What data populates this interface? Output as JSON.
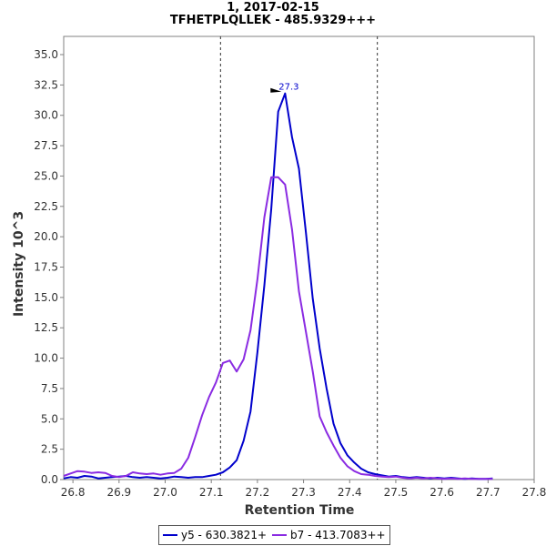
{
  "chart_data": {
    "type": "line",
    "title": "1, 2017-02-15",
    "subtitle": "TFHETPLQLLEK - 485.9329+++",
    "xlabel": "Retention Time",
    "ylabel": "Intensity 10^3",
    "xlim": [
      26.78,
      27.8
    ],
    "ylim": [
      0,
      36.5
    ],
    "xticks": [
      "26.8",
      "26.9",
      "27.0",
      "27.1",
      "27.2",
      "27.3",
      "27.4",
      "27.5",
      "27.6",
      "27.7",
      "27.8"
    ],
    "yticks": [
      "0.0",
      "2.5",
      "5.0",
      "7.5",
      "10.0",
      "12.5",
      "15.0",
      "17.5",
      "20.0",
      "22.5",
      "25.0",
      "27.5",
      "30.0",
      "32.5",
      "35.0"
    ],
    "boundaries": [
      27.12,
      27.46
    ],
    "peak_annotation": {
      "label": "27.3",
      "x": 27.26,
      "y": 31.8
    },
    "legend_position": "bottom-center",
    "grid": false,
    "series": [
      {
        "name": "y5 - 630.3821+",
        "color": "#0000cc",
        "x": [
          26.78,
          26.795,
          26.81,
          26.825,
          26.84,
          26.855,
          26.87,
          26.885,
          26.9,
          26.915,
          26.93,
          26.945,
          26.96,
          26.975,
          26.99,
          27.005,
          27.02,
          27.035,
          27.05,
          27.065,
          27.08,
          27.095,
          27.11,
          27.125,
          27.14,
          27.155,
          27.17,
          27.185,
          27.2,
          27.215,
          27.23,
          27.245,
          27.26,
          27.275,
          27.29,
          27.305,
          27.32,
          27.335,
          27.35,
          27.365,
          27.38,
          27.395,
          27.41,
          27.425,
          27.44,
          27.455,
          27.47,
          27.485,
          27.5,
          27.515,
          27.53,
          27.545,
          27.56,
          27.575,
          27.59,
          27.605,
          27.62,
          27.635,
          27.65,
          27.665,
          27.68,
          27.695,
          27.71
        ],
        "values": [
          0.1,
          0.2,
          0.15,
          0.3,
          0.25,
          0.1,
          0.15,
          0.2,
          0.25,
          0.3,
          0.2,
          0.15,
          0.2,
          0.15,
          0.1,
          0.15,
          0.25,
          0.2,
          0.15,
          0.2,
          0.2,
          0.3,
          0.4,
          0.6,
          1.0,
          1.6,
          3.2,
          5.6,
          10.5,
          16.0,
          22.3,
          30.3,
          31.8,
          28.2,
          25.6,
          20.4,
          14.9,
          10.8,
          7.5,
          4.6,
          3.0,
          2.0,
          1.4,
          0.9,
          0.6,
          0.45,
          0.35,
          0.25,
          0.3,
          0.2,
          0.15,
          0.2,
          0.15,
          0.1,
          0.15,
          0.1,
          0.15,
          0.1,
          0.05,
          0.1,
          0.05,
          0.05,
          0.1
        ]
      },
      {
        "name": "b7 - 413.7083++",
        "color": "#8a2be2",
        "x": [
          26.78,
          26.795,
          26.81,
          26.825,
          26.84,
          26.855,
          26.87,
          26.885,
          26.9,
          26.915,
          26.93,
          26.945,
          26.96,
          26.975,
          26.99,
          27.005,
          27.02,
          27.035,
          27.05,
          27.065,
          27.08,
          27.095,
          27.11,
          27.125,
          27.14,
          27.155,
          27.17,
          27.185,
          27.2,
          27.215,
          27.23,
          27.245,
          27.26,
          27.275,
          27.29,
          27.305,
          27.32,
          27.335,
          27.35,
          27.365,
          27.38,
          27.395,
          27.41,
          27.425,
          27.44,
          27.455,
          27.47,
          27.485,
          27.5,
          27.515,
          27.53,
          27.545,
          27.56,
          27.575,
          27.59,
          27.605,
          27.62,
          27.635,
          27.65,
          27.665,
          27.68,
          27.695,
          27.71
        ],
        "values": [
          0.3,
          0.5,
          0.7,
          0.65,
          0.55,
          0.6,
          0.55,
          0.3,
          0.2,
          0.3,
          0.6,
          0.5,
          0.45,
          0.5,
          0.4,
          0.5,
          0.55,
          0.9,
          1.8,
          3.5,
          5.3,
          6.8,
          8.0,
          9.6,
          9.8,
          8.9,
          9.9,
          12.3,
          16.5,
          21.6,
          24.9,
          24.9,
          24.3,
          20.6,
          15.5,
          12.2,
          8.9,
          5.2,
          3.9,
          2.8,
          1.8,
          1.1,
          0.7,
          0.45,
          0.4,
          0.3,
          0.25,
          0.2,
          0.25,
          0.15,
          0.1,
          0.15,
          0.1,
          0.15,
          0.1,
          0.05,
          0.1,
          0.05,
          0.1,
          0.05,
          0.05,
          0.05,
          0.05
        ]
      }
    ]
  }
}
